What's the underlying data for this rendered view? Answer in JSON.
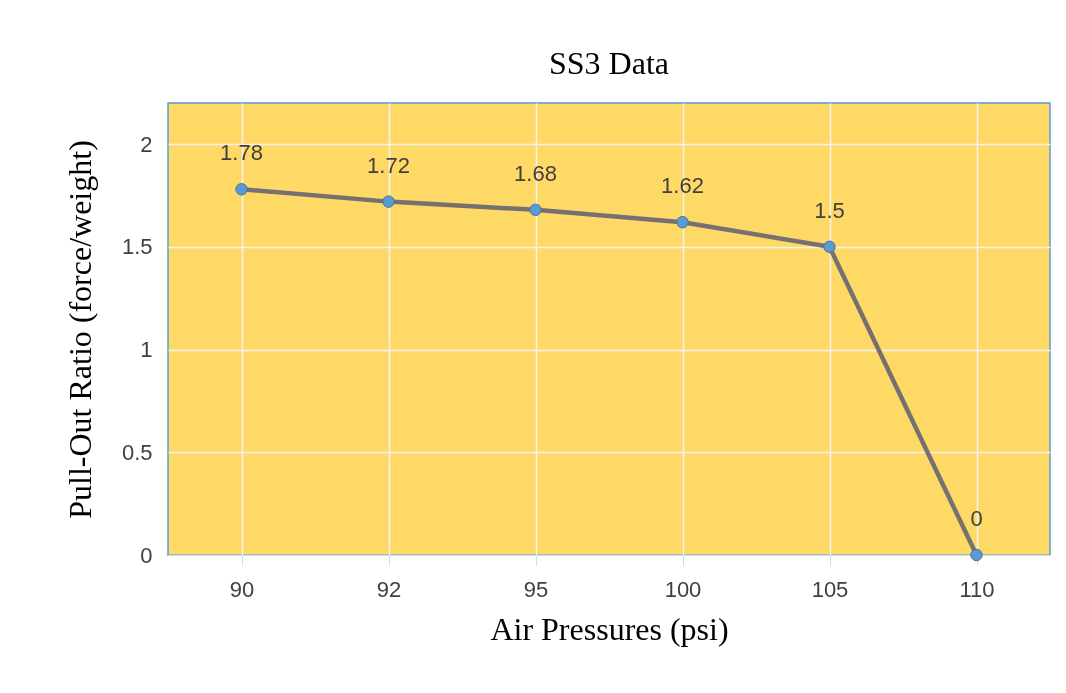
{
  "chart_data": {
    "type": "line",
    "title": "SS3 Data",
    "xlabel": "Air Pressures (psi)",
    "ylabel": "Pull-Out  Ratio (force/weight)",
    "categories": [
      "90",
      "92",
      "95",
      "100",
      "105",
      "110"
    ],
    "series": [
      {
        "color": "#767171",
        "values": [
          1.78,
          1.72,
          1.68,
          1.62,
          1.5,
          0
        ]
      }
    ],
    "ylim": [
      0,
      2.2
    ],
    "yticks": [
      0,
      0.5,
      1,
      1.5,
      2
    ],
    "grid": true,
    "marker": "circle",
    "line_style": "solid",
    "data_labels": true
  }
}
